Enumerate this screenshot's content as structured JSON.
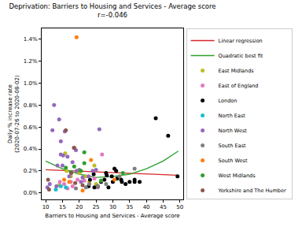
{
  "chart_data": {
    "type": "scatter",
    "title": "Deprivation: Barriers to Housing and Services - Average score",
    "subtitle": "r=-0.046",
    "x_label": "Barriers to Housing and Services - Average score",
    "y_label": "Daily % increase rate\n(2020-07-26 to 2020-08-02)",
    "xlim": [
      8.8,
      51
    ],
    "xticks": [
      10,
      15,
      20,
      25,
      30,
      35,
      40,
      45,
      50
    ],
    "ylim": [
      -0.06,
      1.5
    ],
    "yticks": [
      {
        "value": 0,
        "label": "0.0%"
      },
      {
        "value": 0.2,
        "label": "0.2%"
      },
      {
        "value": 0.4,
        "label": "0.4%"
      },
      {
        "value": 0.6,
        "label": "0.6%"
      },
      {
        "value": 0.8,
        "label": "0.8%"
      },
      {
        "value": 1.0,
        "label": "1.0%"
      },
      {
        "value": 1.2,
        "label": "1.2%"
      },
      {
        "value": 1.4,
        "label": "1.4%"
      }
    ],
    "grid": false,
    "legend": "right",
    "series": [
      {
        "name": "Linear regression",
        "type": "line",
        "color": "#d62728",
        "x": [
          10,
          49.5
        ],
        "values": [
          0.21,
          0.16
        ]
      },
      {
        "name": "Quadratic best fit",
        "type": "line",
        "color": "#2ca02c",
        "x": [
          10,
          15,
          20,
          25,
          30,
          35,
          40,
          45,
          49.5
        ],
        "values": [
          0.29,
          0.22,
          0.17,
          0.14,
          0.15,
          0.17,
          0.22,
          0.29,
          0.38
        ]
      },
      {
        "name": "East Midlands",
        "type": "scatter",
        "color": "#bcbd22",
        "x": [
          15.8,
          16.2,
          14,
          22,
          23,
          24.5,
          20,
          17.5,
          25
        ],
        "values": [
          0.36,
          0.2,
          0.07,
          0.15,
          0.1,
          0.25,
          0.18,
          0.15,
          0.08
        ]
      },
      {
        "name": "East of England",
        "type": "scatter",
        "color": "#e377c2",
        "x": [
          14.2,
          15.5,
          16.5,
          24.5,
          26.8,
          21.5,
          18,
          17.5,
          19.5,
          25.5
        ],
        "values": [
          0.1,
          0.08,
          0.04,
          0.13,
          0.35,
          0.11,
          0.06,
          0.1,
          0.12,
          0.05
        ]
      },
      {
        "name": "London",
        "type": "scatter",
        "color": "#000000",
        "x": [
          42.8,
          46.5,
          49.3,
          36.5,
          36.5,
          33.8,
          35,
          31,
          30.5,
          28,
          28.2,
          27.5,
          26.5,
          25.5,
          24.3,
          24.5,
          22.8,
          29.7,
          32.5,
          32.7,
          30,
          23.2,
          28.7,
          31.3,
          38
        ],
        "values": [
          0.68,
          0.52,
          0.15,
          0.12,
          0.1,
          0.08,
          0.1,
          0.2,
          0.22,
          0.18,
          0.16,
          0.12,
          0.1,
          0.06,
          0.17,
          0.05,
          0.06,
          0.15,
          0.12,
          0.1,
          0.1,
          0.12,
          0.05,
          0.13,
          0.1
        ]
      },
      {
        "name": "North East",
        "type": "scatter",
        "color": "#17becf",
        "x": [
          13,
          14.5,
          16
        ],
        "values": [
          0.03,
          0.06,
          0.05
        ]
      },
      {
        "name": "North West",
        "type": "scatter",
        "color": "#9467bd",
        "x": [
          12,
          12.5,
          14,
          14.5,
          14.5,
          15.2,
          15.7,
          15,
          16.5,
          18.4,
          19,
          19.2,
          13.5,
          17,
          13.2,
          26,
          21,
          22.8,
          10.5,
          11.2,
          20.5,
          18,
          24,
          25
        ],
        "values": [
          0.57,
          0.8,
          0.67,
          0.35,
          0.47,
          0.34,
          0.56,
          0.25,
          0.33,
          0.41,
          0.39,
          0.2,
          0.25,
          0.15,
          0.06,
          0.58,
          0.14,
          0.15,
          0.05,
          0.08,
          0.1,
          0.28,
          0.2,
          0.21
        ]
      },
      {
        "name": "South East",
        "type": "scatter",
        "color": "#7f7f7f",
        "x": [
          20,
          23,
          28,
          36.5,
          32,
          19,
          25.5,
          22,
          26.5
        ],
        "values": [
          0.21,
          0.08,
          0.08,
          0.22,
          0.15,
          0.04,
          0.06,
          0.05,
          0.11
        ]
      },
      {
        "name": "South West",
        "type": "scatter",
        "color": "#ff7f0e",
        "x": [
          19.2,
          15.5,
          23.5,
          21,
          30.5,
          17
        ],
        "values": [
          1.42,
          0.12,
          0.3,
          0.02,
          0.12,
          0.1
        ]
      },
      {
        "name": "West Midlands",
        "type": "scatter",
        "color": "#2ca02c",
        "x": [
          21.5,
          18.5,
          21.5,
          16,
          17.5,
          33,
          26.5,
          20.5
        ],
        "values": [
          0.37,
          0.24,
          0.27,
          0.23,
          0.19,
          0.18,
          0.11,
          0.2
        ]
      },
      {
        "name": "Yorkshire and The Humber",
        "type": "scatter",
        "color": "#8c564b",
        "x": [
          16,
          18.5,
          10.7,
          17.6,
          18.8,
          21,
          11
        ],
        "values": [
          0.57,
          0.41,
          0.12,
          0.18,
          0.09,
          0.07,
          0.03
        ]
      }
    ]
  }
}
